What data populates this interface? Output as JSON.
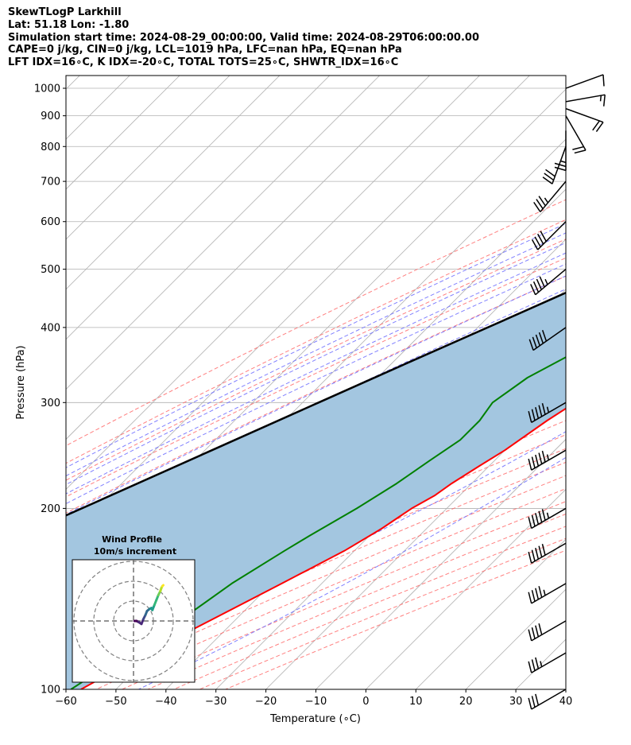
{
  "header": {
    "line1": "SkewTLogP Larkhill",
    "line2": "Lat: 51.18   Lon: -1.80",
    "line3": "Simulation start time: 2024-08-29_00:00:00, Valid time: 2024-08-29T06:00:00.00",
    "line4": "CAPE=0 j/kg, CIN=0 j/kg, LCL=1019 hPa, LFC=nan hPa, EQ=nan hPa",
    "line5": "LFT IDX=16∘C, K IDX=-20∘C, TOTAL TOTS=25∘C, SHWTR_IDX=16∘C"
  },
  "chart_data": {
    "type": "line",
    "chart_kind": "skew-T log-P",
    "xlabel": "Temperature (∘C)",
    "ylabel": "Pressure (hPa)",
    "xlim": [
      -60,
      40
    ],
    "ylim_hpa": [
      1050,
      100
    ],
    "y_scale": "log",
    "x_ticks": [
      "−60",
      "−50",
      "−40",
      "−30",
      "−20",
      "−10",
      "0",
      "10",
      "20",
      "30",
      "40"
    ],
    "y_ticks": [
      "100",
      "200",
      "300",
      "400",
      "500",
      "600",
      "700",
      "800",
      "900",
      "1000"
    ],
    "grid": true,
    "colors": {
      "temperature": "#ff0000",
      "dewpoint": "#008000",
      "parcel": "#000000",
      "cape_fill": "#a3c6e0",
      "dry_adiabats": "#ff6a6a",
      "moist_adiabats": "#6b6bff",
      "mixing_ratio": "#9a4fc4",
      "isotherms": "#b0b0b0",
      "barbs": "#000000"
    },
    "series": [
      {
        "key": "temperature",
        "pressure": [
          1000,
          990,
          975,
          950,
          925,
          900,
          850,
          800,
          750,
          700,
          650,
          600,
          550,
          500,
          450,
          400,
          350,
          300,
          280,
          250,
          235,
          220,
          210,
          200,
          185,
          170,
          150,
          130,
          115,
          100
        ],
        "values": [
          12.5,
          14,
          13.5,
          13,
          12.8,
          12.6,
          13,
          13.5,
          13.3,
          13,
          12.5,
          11.5,
          9.5,
          6,
          1.5,
          -4,
          -9.5,
          -15.5,
          -17.5,
          -20,
          -22,
          -24,
          -25,
          -27,
          -29,
          -32,
          -38,
          -45,
          -51,
          -57
        ]
      },
      {
        "key": "dewpoint",
        "pressure": [
          1000,
          990,
          975,
          950,
          900,
          850,
          800,
          750,
          700,
          650,
          640,
          600,
          550,
          500,
          460,
          400,
          360,
          330,
          300,
          280,
          260,
          240,
          220,
          200,
          180,
          170,
          150,
          130,
          115,
          100
        ],
        "values": [
          11,
          11.5,
          12.5,
          11,
          4,
          -5,
          -12,
          -20,
          -27,
          -33,
          -34,
          -31,
          -22,
          -17,
          -19,
          -22,
          -26,
          -30,
          -32,
          -31,
          -31,
          -33,
          -35,
          -38,
          -42,
          -44,
          -48,
          -51,
          -55,
          -59
        ]
      },
      {
        "key": "parcel",
        "pressure": [
          1019,
          1000,
          950,
          900,
          850,
          800,
          750,
          700,
          650,
          600,
          550,
          500,
          450,
          400,
          350,
          300,
          250,
          200,
          150,
          100
        ],
        "values": [
          10.5,
          9.3,
          6.3,
          3.2,
          -0.2,
          -3.9,
          -7.8,
          -12,
          -16.7,
          -21.7,
          -27.3,
          -33.4,
          -40.3,
          -48,
          -56.8,
          -66.8,
          -78.6,
          -93,
          -112,
          -139
        ]
      }
    ],
    "wind_barbs": {
      "pressure": [
        1000,
        950,
        925,
        900,
        850,
        800,
        700,
        600,
        500,
        400,
        300,
        250,
        200,
        175,
        150,
        130,
        115,
        100
      ],
      "speed_kt": [
        10,
        15,
        20,
        20,
        25,
        30,
        35,
        40,
        45,
        50,
        55,
        55,
        55,
        50,
        45,
        40,
        35,
        30
      ],
      "direction_deg": [
        70,
        80,
        110,
        150,
        180,
        200,
        220,
        225,
        230,
        235,
        240,
        240,
        240,
        240,
        240,
        240,
        240,
        240
      ]
    },
    "hodograph": {
      "title": "Wind Profile",
      "subtitle": "10m/s increment",
      "u": [
        0.5,
        1.5,
        2.5,
        4,
        5,
        6,
        6.8,
        8,
        9,
        9.5,
        10.5,
        11.5,
        12.5,
        13.5,
        14,
        14.5,
        15
      ],
      "v": [
        0,
        0,
        -0.5,
        -1.5,
        1,
        3,
        5,
        6,
        6.5,
        5.5,
        8,
        10.5,
        13,
        15,
        16.5,
        17.5,
        18
      ]
    }
  }
}
